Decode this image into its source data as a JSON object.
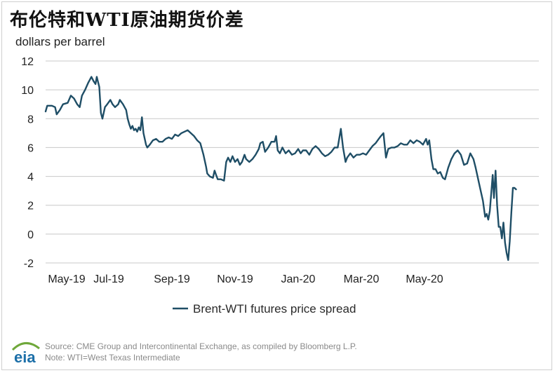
{
  "title": "布伦特和WTI原油期货价差",
  "unit_label": "dollars per barrel",
  "logo_text": "eia",
  "source_line": "Source: CME Group and Intercontinental Exchange, as compiled by Bloomberg L.P.",
  "note_line": "Note: WTI=West Texas Intermediate",
  "colors": {
    "series": "#1f4e66",
    "grid": "#c8c8c8",
    "logo_blue": "#1c6fa8",
    "logo_green": "#6fa83a"
  },
  "chart_data": {
    "type": "line",
    "title": "布伦特和WTI原油期货价差",
    "ylabel": "dollars per barrel",
    "xlabel": "",
    "ylim": [
      -2,
      12
    ],
    "xlim": [
      0,
      14.9
    ],
    "x_unit": "months since May 1, 2019",
    "yticks": [
      12,
      10,
      8,
      6,
      4,
      2,
      0,
      -2
    ],
    "xticks": [
      {
        "label": "May-19",
        "x": 0
      },
      {
        "label": "Jul-19",
        "x": 2
      },
      {
        "label": "Sep-19",
        "x": 4
      },
      {
        "label": "Nov-19",
        "x": 6
      },
      {
        "label": "Jan-20",
        "x": 8
      },
      {
        "label": "Mar-20",
        "x": 10
      },
      {
        "label": "May-20",
        "x": 12
      }
    ],
    "legend": "bottom",
    "series": [
      {
        "name": "Brent-WTI futures price spread",
        "points": [
          [
            0.0,
            8.5
          ],
          [
            0.05,
            8.9
          ],
          [
            0.2,
            8.9
          ],
          [
            0.3,
            8.8
          ],
          [
            0.35,
            8.3
          ],
          [
            0.45,
            8.6
          ],
          [
            0.55,
            9.0
          ],
          [
            0.7,
            9.1
          ],
          [
            0.8,
            9.6
          ],
          [
            0.9,
            9.4
          ],
          [
            1.0,
            9.0
          ],
          [
            1.08,
            8.8
          ],
          [
            1.15,
            9.6
          ],
          [
            1.25,
            10.0
          ],
          [
            1.35,
            10.5
          ],
          [
            1.45,
            10.9
          ],
          [
            1.52,
            10.6
          ],
          [
            1.58,
            10.4
          ],
          [
            1.62,
            10.9
          ],
          [
            1.7,
            10.2
          ],
          [
            1.75,
            8.4
          ],
          [
            1.8,
            8.0
          ],
          [
            1.88,
            8.8
          ],
          [
            1.95,
            9.0
          ],
          [
            2.05,
            9.3
          ],
          [
            2.12,
            9.0
          ],
          [
            2.2,
            8.8
          ],
          [
            2.3,
            9.0
          ],
          [
            2.35,
            9.3
          ],
          [
            2.45,
            9.0
          ],
          [
            2.55,
            8.6
          ],
          [
            2.6,
            8.0
          ],
          [
            2.65,
            7.6
          ],
          [
            2.7,
            7.3
          ],
          [
            2.75,
            7.5
          ],
          [
            2.8,
            7.2
          ],
          [
            2.85,
            7.3
          ],
          [
            2.9,
            7.1
          ],
          [
            2.95,
            7.4
          ],
          [
            3.0,
            7.2
          ],
          [
            3.05,
            8.1
          ],
          [
            3.1,
            7.0
          ],
          [
            3.18,
            6.2
          ],
          [
            3.22,
            6.0
          ],
          [
            3.3,
            6.2
          ],
          [
            3.4,
            6.5
          ],
          [
            3.5,
            6.6
          ],
          [
            3.6,
            6.4
          ],
          [
            3.7,
            6.4
          ],
          [
            3.8,
            6.6
          ],
          [
            3.9,
            6.7
          ],
          [
            4.0,
            6.6
          ],
          [
            4.1,
            6.9
          ],
          [
            4.2,
            6.8
          ],
          [
            4.3,
            7.0
          ],
          [
            4.4,
            7.1
          ],
          [
            4.5,
            7.2
          ],
          [
            4.6,
            7.0
          ],
          [
            4.7,
            6.8
          ],
          [
            4.8,
            6.5
          ],
          [
            4.9,
            6.3
          ],
          [
            5.0,
            5.5
          ],
          [
            5.08,
            4.7
          ],
          [
            5.12,
            4.2
          ],
          [
            5.2,
            4.0
          ],
          [
            5.3,
            3.9
          ],
          [
            5.35,
            4.4
          ],
          [
            5.4,
            4.1
          ],
          [
            5.45,
            3.8
          ],
          [
            5.55,
            3.8
          ],
          [
            5.65,
            3.7
          ],
          [
            5.72,
            5.0
          ],
          [
            5.78,
            5.3
          ],
          [
            5.85,
            5.0
          ],
          [
            5.92,
            5.4
          ],
          [
            6.0,
            5.0
          ],
          [
            6.08,
            5.2
          ],
          [
            6.15,
            4.8
          ],
          [
            6.22,
            5.0
          ],
          [
            6.3,
            5.5
          ],
          [
            6.35,
            5.2
          ],
          [
            6.45,
            5.0
          ],
          [
            6.55,
            5.2
          ],
          [
            6.65,
            5.5
          ],
          [
            6.75,
            5.9
          ],
          [
            6.8,
            6.3
          ],
          [
            6.88,
            6.4
          ],
          [
            6.95,
            5.7
          ],
          [
            7.05,
            6.0
          ],
          [
            7.15,
            6.4
          ],
          [
            7.25,
            6.4
          ],
          [
            7.3,
            6.8
          ],
          [
            7.35,
            5.8
          ],
          [
            7.42,
            5.6
          ],
          [
            7.5,
            6.0
          ],
          [
            7.6,
            5.6
          ],
          [
            7.7,
            5.8
          ],
          [
            7.8,
            5.5
          ],
          [
            7.9,
            5.6
          ],
          [
            8.0,
            5.9
          ],
          [
            8.08,
            5.6
          ],
          [
            8.15,
            5.8
          ],
          [
            8.25,
            5.8
          ],
          [
            8.35,
            5.5
          ],
          [
            8.45,
            5.9
          ],
          [
            8.55,
            6.1
          ],
          [
            8.65,
            5.9
          ],
          [
            8.75,
            5.6
          ],
          [
            8.85,
            5.4
          ],
          [
            8.95,
            5.5
          ],
          [
            9.05,
            5.7
          ],
          [
            9.15,
            6.0
          ],
          [
            9.25,
            6.0
          ],
          [
            9.35,
            7.3
          ],
          [
            9.42,
            6.0
          ],
          [
            9.5,
            5.0
          ],
          [
            9.55,
            5.3
          ],
          [
            9.65,
            5.6
          ],
          [
            9.75,
            5.3
          ],
          [
            9.85,
            5.5
          ],
          [
            9.95,
            5.5
          ],
          [
            10.05,
            5.6
          ],
          [
            10.15,
            5.5
          ],
          [
            10.25,
            5.8
          ],
          [
            10.35,
            6.1
          ],
          [
            10.45,
            6.3
          ],
          [
            10.55,
            6.6
          ],
          [
            10.62,
            6.8
          ],
          [
            10.7,
            7.0
          ],
          [
            10.78,
            5.3
          ],
          [
            10.85,
            5.9
          ],
          [
            10.95,
            6.0
          ],
          [
            11.05,
            6.0
          ],
          [
            11.15,
            6.1
          ],
          [
            11.25,
            6.3
          ],
          [
            11.35,
            6.2
          ],
          [
            11.45,
            6.2
          ],
          [
            11.55,
            6.5
          ],
          [
            11.65,
            6.3
          ],
          [
            11.75,
            6.5
          ],
          [
            11.85,
            6.4
          ],
          [
            11.95,
            6.2
          ],
          [
            12.0,
            6.4
          ],
          [
            12.05,
            6.6
          ],
          [
            12.1,
            6.2
          ],
          [
            12.15,
            6.5
          ],
          [
            12.22,
            5.2
          ],
          [
            12.28,
            4.5
          ],
          [
            12.35,
            4.5
          ],
          [
            12.42,
            4.2
          ],
          [
            12.5,
            4.3
          ],
          [
            12.58,
            3.9
          ],
          [
            12.65,
            3.8
          ],
          [
            12.75,
            4.6
          ],
          [
            12.85,
            5.2
          ],
          [
            12.95,
            5.6
          ],
          [
            13.05,
            5.8
          ],
          [
            13.15,
            5.5
          ],
          [
            13.25,
            4.8
          ],
          [
            13.35,
            4.9
          ],
          [
            13.45,
            5.6
          ],
          [
            13.55,
            5.2
          ],
          [
            13.62,
            4.6
          ],
          [
            13.7,
            3.8
          ],
          [
            13.78,
            3.0
          ],
          [
            13.85,
            2.3
          ],
          [
            13.92,
            1.2
          ],
          [
            13.97,
            1.4
          ],
          [
            14.02,
            1.0
          ],
          [
            14.07,
            1.6
          ],
          [
            14.12,
            3.0
          ],
          [
            14.16,
            4.1
          ],
          [
            14.2,
            2.5
          ],
          [
            14.25,
            4.4
          ],
          [
            14.3,
            2.0
          ],
          [
            14.35,
            0.5
          ],
          [
            14.4,
            0.5
          ],
          [
            14.45,
            -0.3
          ],
          [
            14.5,
            0.8
          ],
          [
            14.55,
            -0.6
          ],
          [
            14.6,
            -1.3
          ],
          [
            14.65,
            -1.8
          ],
          [
            14.7,
            -0.5
          ],
          [
            14.75,
            1.5
          ],
          [
            14.8,
            3.2
          ],
          [
            14.85,
            3.2
          ],
          [
            14.9,
            3.1
          ]
        ]
      }
    ]
  }
}
